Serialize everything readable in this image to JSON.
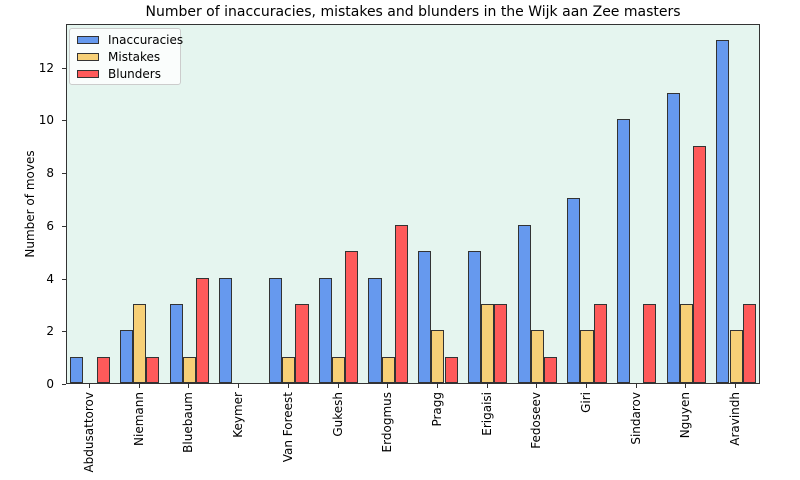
{
  "chart_data": {
    "type": "bar",
    "title": "Number of inaccuracies, mistakes and blunders in the Wijk aan Zee masters",
    "xlabel": "",
    "ylabel": "Number of moves",
    "ylim": [
      0,
      13.65
    ],
    "yticks": [
      0,
      2,
      4,
      6,
      8,
      10,
      12
    ],
    "grid": false,
    "legend_position": "upper left",
    "categories": [
      "Abdusattorov",
      "Niemann",
      "Bluebaum",
      "Keymer",
      "Van Foreest",
      "Gukesh",
      "Erdogmus",
      "Pragg",
      "Erigaisi",
      "Fedoseev",
      "Giri",
      "Sindarov",
      "Nguyen",
      "Aravindh"
    ],
    "series": [
      {
        "name": "Inaccuracies",
        "color": "#6699ee",
        "values": [
          1,
          2,
          3,
          4,
          4,
          4,
          4,
          5,
          5,
          6,
          7,
          10,
          11,
          13
        ]
      },
      {
        "name": "Mistakes",
        "color": "#f7d077",
        "values": [
          0,
          3,
          1,
          0,
          1,
          1,
          1,
          2,
          3,
          2,
          2,
          0,
          3,
          2
        ]
      },
      {
        "name": "Blunders",
        "color": "#fe5a5a",
        "values": [
          1,
          1,
          4,
          0,
          3,
          5,
          6,
          1,
          3,
          1,
          3,
          3,
          9,
          3
        ]
      }
    ]
  },
  "plot_background": "#e5f5ef"
}
